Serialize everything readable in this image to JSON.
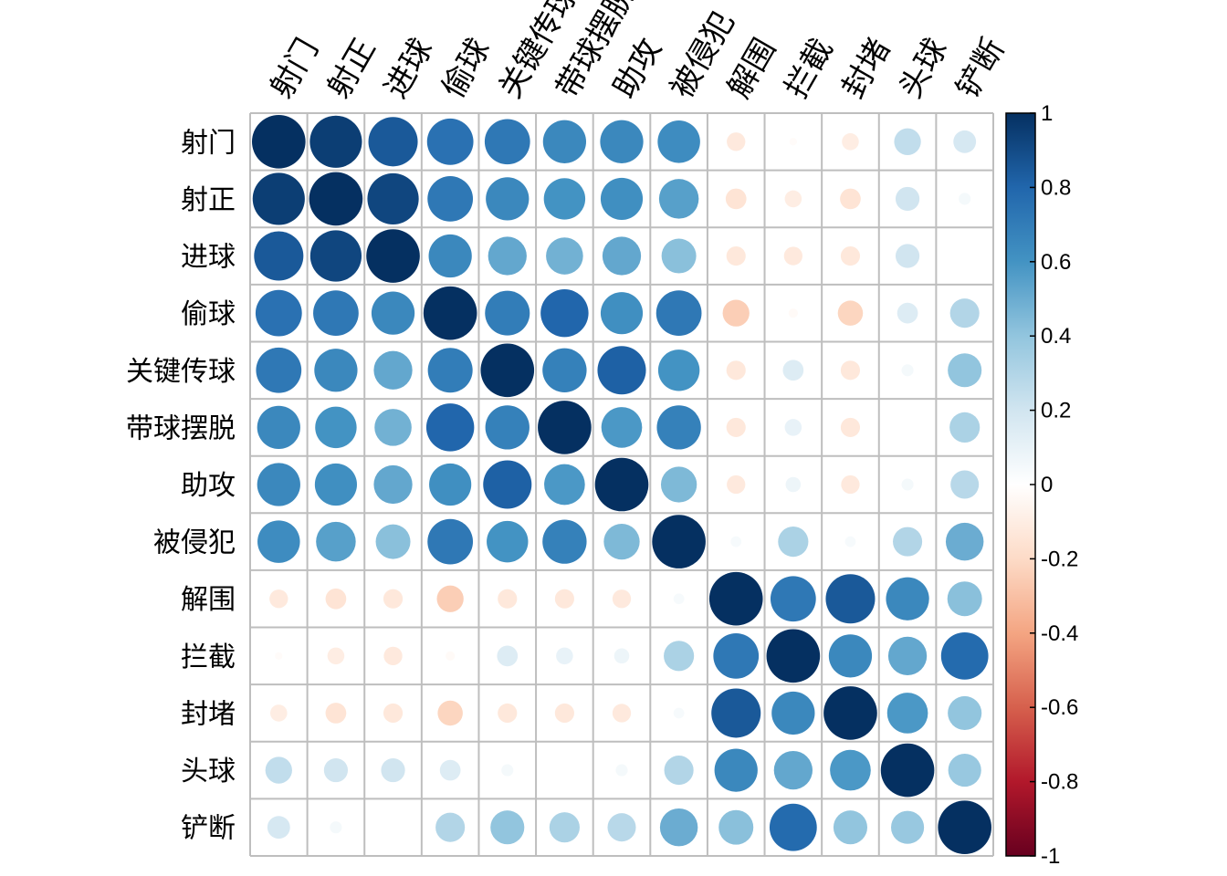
{
  "chart_data": {
    "type": "heatmap",
    "title": "",
    "labels": [
      "射门",
      "射正",
      "进球",
      "偷球",
      "关键传球",
      "带球摆脱",
      "助攻",
      "被侵犯",
      "解围",
      "拦截",
      "封堵",
      "头球",
      "铲断"
    ],
    "matrix": [
      [
        1.0,
        0.95,
        0.85,
        0.75,
        0.72,
        0.65,
        0.65,
        0.63,
        -0.12,
        -0.02,
        -0.1,
        0.25,
        0.18
      ],
      [
        0.95,
        1.0,
        0.92,
        0.72,
        0.65,
        0.6,
        0.62,
        0.55,
        -0.15,
        -0.1,
        -0.15,
        0.2,
        0.05
      ],
      [
        0.85,
        0.92,
        1.0,
        0.65,
        0.52,
        0.48,
        0.52,
        0.42,
        -0.13,
        -0.12,
        -0.13,
        0.2,
        0.0
      ],
      [
        0.75,
        0.72,
        0.65,
        1.0,
        0.7,
        0.8,
        0.62,
        0.72,
        -0.25,
        -0.03,
        -0.22,
        0.15,
        0.3
      ],
      [
        0.72,
        0.65,
        0.52,
        0.7,
        1.0,
        0.68,
        0.82,
        0.6,
        -0.13,
        0.15,
        -0.13,
        0.05,
        0.4
      ],
      [
        0.65,
        0.6,
        0.48,
        0.8,
        0.68,
        1.0,
        0.58,
        0.68,
        -0.13,
        0.1,
        -0.13,
        0.0,
        0.32
      ],
      [
        0.65,
        0.62,
        0.52,
        0.62,
        0.82,
        0.58,
        1.0,
        0.45,
        -0.12,
        0.08,
        -0.12,
        0.05,
        0.28
      ],
      [
        0.63,
        0.55,
        0.42,
        0.72,
        0.6,
        0.68,
        0.45,
        1.0,
        0.04,
        0.32,
        0.04,
        0.3,
        0.5
      ],
      [
        -0.12,
        -0.15,
        -0.13,
        -0.25,
        -0.13,
        -0.13,
        -0.12,
        0.04,
        1.0,
        0.72,
        0.85,
        0.65,
        0.42
      ],
      [
        -0.02,
        -0.1,
        -0.12,
        -0.03,
        0.15,
        0.1,
        0.08,
        0.32,
        0.72,
        1.0,
        0.65,
        0.52,
        0.78
      ],
      [
        -0.1,
        -0.15,
        -0.13,
        -0.22,
        -0.13,
        -0.13,
        -0.12,
        0.04,
        0.85,
        0.65,
        1.0,
        0.58,
        0.4
      ],
      [
        0.25,
        0.2,
        0.2,
        0.15,
        0.05,
        0.0,
        0.05,
        0.3,
        0.65,
        0.52,
        0.58,
        1.0,
        0.38
      ],
      [
        0.18,
        0.05,
        0.0,
        0.3,
        0.4,
        0.32,
        0.28,
        0.5,
        0.42,
        0.78,
        0.4,
        0.38,
        1.0
      ]
    ],
    "value_range": [
      -1,
      1
    ],
    "colorbar_ticks": [
      "1",
      "0.8",
      "0.6",
      "0.4",
      "0.2",
      "0",
      "-0.2",
      "-0.4",
      "-0.6",
      "-0.8",
      "-1"
    ],
    "colorbar_values": [
      1,
      0.8,
      0.6,
      0.4,
      0.2,
      0,
      -0.2,
      -0.4,
      -0.6,
      -0.8,
      -1
    ],
    "colors": {
      "negative_end": "#67001f",
      "zero": "#ffffff",
      "positive_end": "#053061",
      "grid": "#bebebe"
    },
    "grid": true,
    "legend_position": "right"
  }
}
